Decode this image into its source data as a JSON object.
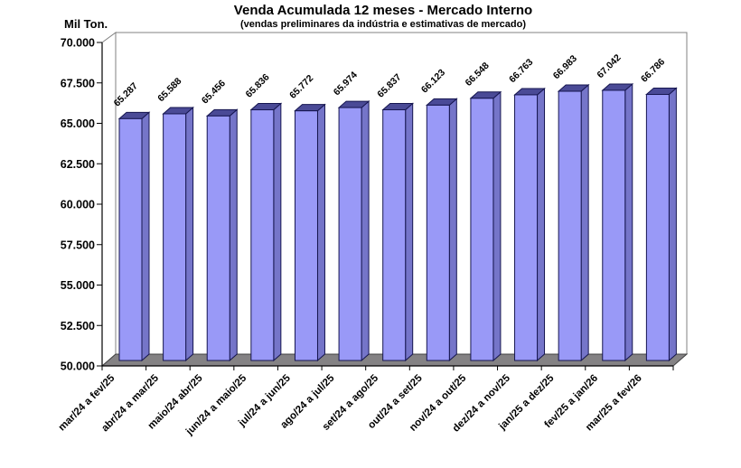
{
  "chart_data": {
    "type": "bar",
    "style_3d": true,
    "title": "Venda Acumulada 12 meses -  Mercado Interno",
    "subtitle": "(vendas preliminares da indústria e estimativas de mercado)",
    "y_axis_title": "Mil Ton.",
    "xlabel": "",
    "ylabel": "Mil Ton.",
    "categories": [
      "mar/24 a fev/25",
      "abr/24 a mar/25",
      "maio/24 abr/25",
      "jun/24 a maio/25",
      "jul/24 a jun/25",
      "ago/24 a jul/25",
      "set/24 a ago/25",
      "out/24 a set/25",
      "nov/24 a out/25",
      "dez/24 a nov/25",
      "jan/25 a dez/25",
      "fev/25 a jan/26",
      "mar/25 a fev/26"
    ],
    "values": [
      65287,
      65588,
      65456,
      65836,
      65772,
      65974,
      65837,
      66123,
      66548,
      66763,
      66983,
      67042,
      66786
    ],
    "value_labels": [
      "65.287",
      "65.588",
      "65.456",
      "65.836",
      "65.772",
      "65.974",
      "65.837",
      "66.123",
      "66.548",
      "66.763",
      "66.983",
      "67.042",
      "66.786"
    ],
    "ylim": [
      50000,
      70000
    ],
    "y_tick_step": 2500,
    "y_tick_labels_top_to_bottom": [
      "70.000",
      "67.500",
      "65.000",
      "62.500",
      "60.000",
      "57.500",
      "55.000",
      "52.500",
      "50.000"
    ],
    "grid": false,
    "legend": "none",
    "colors": {
      "bar_front": "#9999F7",
      "bar_top": "#4A4A96",
      "bar_side": "#7575C9",
      "bar_outline": "#161650",
      "floor": "#848284",
      "floor_outline": "#404040",
      "wall_fill": "#FFFFFF",
      "wall_border": "#808080",
      "axis": "#000000",
      "background": "#FFFFFF"
    }
  }
}
